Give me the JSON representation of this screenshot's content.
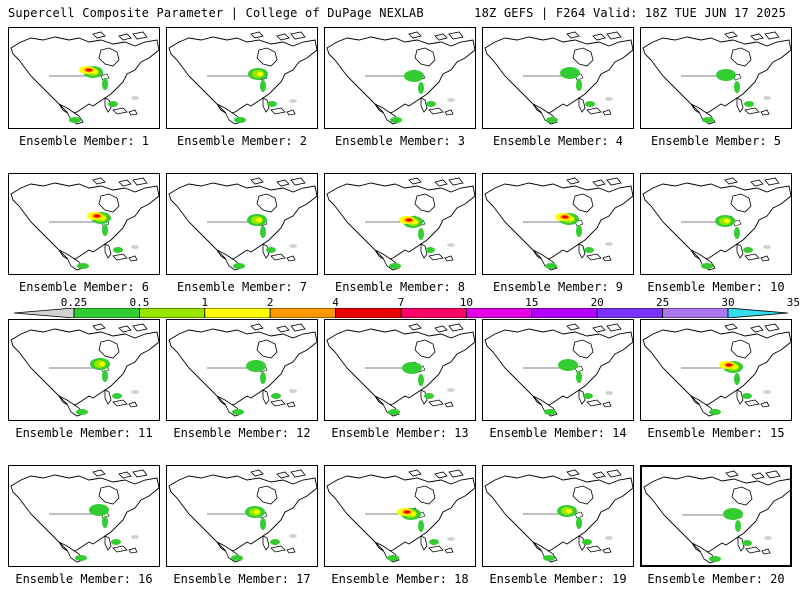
{
  "header": {
    "left": "Supercell Composite Parameter | College of DuPage NEXLAB",
    "right": "18Z GEFS | F264 Valid: 18Z TUE JUN 17 2025"
  },
  "colorbar": {
    "labels": [
      "0.25",
      "0.5",
      "1",
      "2",
      "4",
      "7",
      "10",
      "15",
      "20",
      "25",
      "30",
      "35"
    ],
    "colors": [
      "#d2d2d2",
      "#33cc33",
      "#99e600",
      "#ffff00",
      "#ff9900",
      "#ee0000",
      "#ff0066",
      "#e600e6",
      "#b300ff",
      "#7a33ff",
      "#aa77ee",
      "#33ddee"
    ]
  },
  "panels": [
    {
      "label": "Ensemble Member: 1",
      "intensity": "high"
    },
    {
      "label": "Ensemble Member: 2",
      "intensity": "med"
    },
    {
      "label": "Ensemble Member: 3",
      "intensity": "low"
    },
    {
      "label": "Ensemble Member: 4",
      "intensity": "low"
    },
    {
      "label": "Ensemble Member: 5",
      "intensity": "low"
    },
    {
      "label": "Ensemble Member: 6",
      "intensity": "high"
    },
    {
      "label": "Ensemble Member: 7",
      "intensity": "med"
    },
    {
      "label": "Ensemble Member: 8",
      "intensity": "high"
    },
    {
      "label": "Ensemble Member: 9",
      "intensity": "high"
    },
    {
      "label": "Ensemble Member: 10",
      "intensity": "med"
    },
    {
      "label": "Ensemble Member: 11",
      "intensity": "med"
    },
    {
      "label": "Ensemble Member: 12",
      "intensity": "low"
    },
    {
      "label": "Ensemble Member: 13",
      "intensity": "low"
    },
    {
      "label": "Ensemble Member: 14",
      "intensity": "low"
    },
    {
      "label": "Ensemble Member: 15",
      "intensity": "high"
    },
    {
      "label": "Ensemble Member: 16",
      "intensity": "low"
    },
    {
      "label": "Ensemble Member: 17",
      "intensity": "med"
    },
    {
      "label": "Ensemble Member: 18",
      "intensity": "high"
    },
    {
      "label": "Ensemble Member: 19",
      "intensity": "med"
    },
    {
      "label": "Ensemble Member: 20",
      "intensity": "low",
      "selected": true
    }
  ]
}
